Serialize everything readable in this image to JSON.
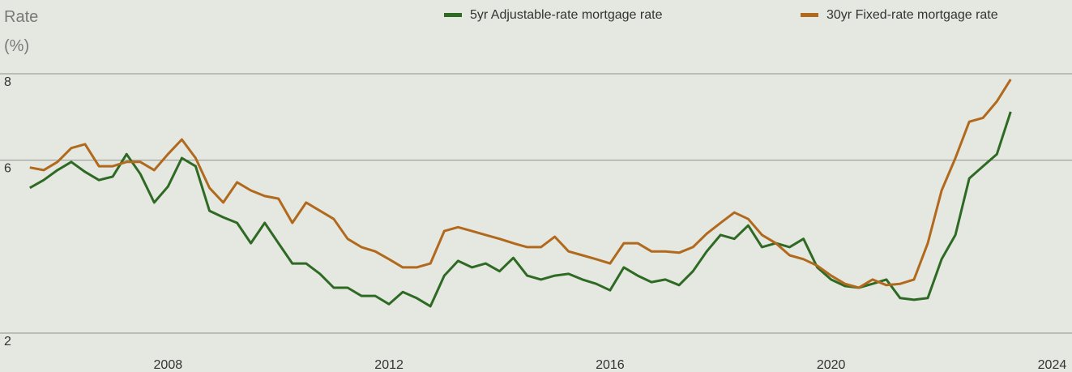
{
  "chart_data": {
    "type": "line",
    "ylabel_lines": [
      "Rate",
      "(%)"
    ],
    "x": [
      2005.5,
      2005.75,
      2006,
      2006.25,
      2006.5,
      2006.75,
      2007,
      2007.25,
      2007.5,
      2007.75,
      2008,
      2008.25,
      2008.5,
      2008.75,
      2009,
      2009.25,
      2009.5,
      2009.75,
      2010,
      2010.25,
      2010.5,
      2010.75,
      2011,
      2011.25,
      2011.5,
      2011.75,
      2012,
      2012.25,
      2012.5,
      2012.75,
      2013,
      2013.25,
      2013.5,
      2013.75,
      2014,
      2014.25,
      2014.5,
      2014.75,
      2015,
      2015.25,
      2015.5,
      2015.75,
      2016,
      2016.25,
      2016.5,
      2016.75,
      2017,
      2017.25,
      2017.5,
      2017.75,
      2018,
      2018.25,
      2018.5,
      2018.75,
      2019,
      2019.25,
      2019.5,
      2019.75,
      2020,
      2020.25,
      2020.5,
      2020.75,
      2021,
      2021.25,
      2021.5,
      2021.75,
      2022,
      2022.25,
      2022.5,
      2022.75,
      2023,
      2023.25
    ],
    "series": [
      {
        "name": "5yr Adjustable-rate mortgage rate",
        "color": "#2f6a25",
        "values": [
          5.36,
          5.54,
          5.77,
          5.96,
          5.73,
          5.54,
          5.62,
          6.14,
          5.68,
          5.02,
          5.39,
          6.05,
          5.86,
          4.83,
          4.68,
          4.55,
          4.08,
          4.55,
          4.08,
          3.61,
          3.61,
          3.37,
          3.05,
          3.05,
          2.86,
          2.86,
          2.67,
          2.95,
          2.81,
          2.62,
          3.33,
          3.67,
          3.52,
          3.61,
          3.43,
          3.74,
          3.33,
          3.24,
          3.33,
          3.37,
          3.24,
          3.14,
          2.99,
          3.52,
          3.33,
          3.18,
          3.24,
          3.11,
          3.43,
          3.89,
          4.27,
          4.18,
          4.49,
          3.99,
          4.08,
          3.99,
          4.18,
          3.52,
          3.24,
          3.09,
          3.05,
          3.14,
          3.24,
          2.81,
          2.77,
          2.81,
          3.71,
          4.27,
          5.58,
          5.86,
          6.14,
          7.12
        ]
      },
      {
        "name": "30yr Fixed-rate mortgage rate",
        "color": "#b0691d",
        "values": [
          5.83,
          5.77,
          5.96,
          6.28,
          6.37,
          5.86,
          5.86,
          5.96,
          5.96,
          5.77,
          6.14,
          6.48,
          6.05,
          5.36,
          5.02,
          5.49,
          5.3,
          5.17,
          5.11,
          4.55,
          5.02,
          4.83,
          4.64,
          4.18,
          3.99,
          3.89,
          3.71,
          3.52,
          3.52,
          3.61,
          4.36,
          4.45,
          4.36,
          4.27,
          4.18,
          4.08,
          3.99,
          3.99,
          4.23,
          3.89,
          3.8,
          3.71,
          3.61,
          4.08,
          4.08,
          3.89,
          3.89,
          3.86,
          3.99,
          4.3,
          4.55,
          4.79,
          4.64,
          4.27,
          4.08,
          3.8,
          3.71,
          3.56,
          3.33,
          3.14,
          3.05,
          3.24,
          3.11,
          3.14,
          3.24,
          4.08,
          5.3,
          6.05,
          6.89,
          6.98,
          7.36,
          7.87
        ]
      }
    ],
    "xlim": [
      2004.96,
      2024.36
    ],
    "xticks": [
      2008,
      2012,
      2016,
      2020,
      2024
    ],
    "ylim": [
      2,
      8
    ],
    "yticks": [
      8,
      6,
      2
    ],
    "grid": true,
    "legend": "top"
  }
}
